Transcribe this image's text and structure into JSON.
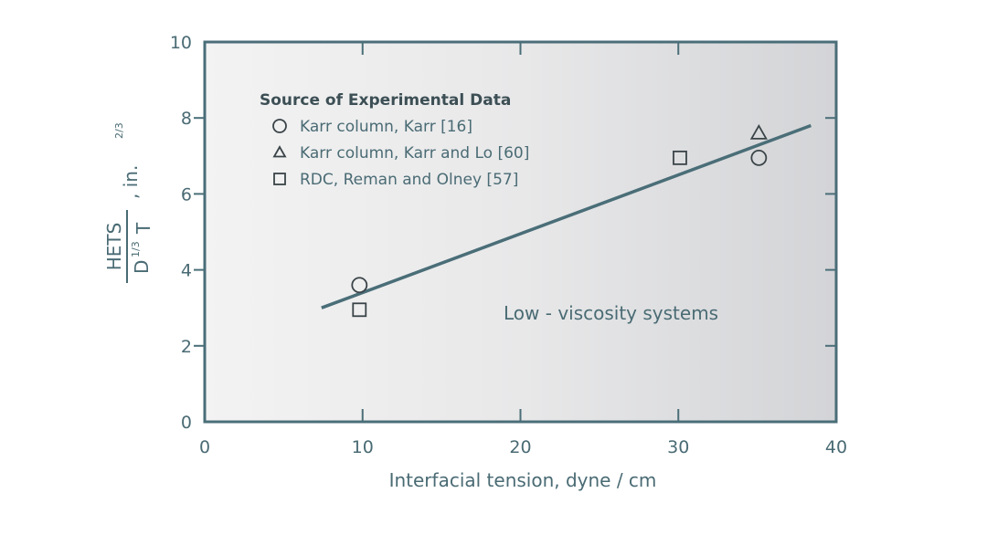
{
  "chart_data": {
    "type": "scatter",
    "title": "",
    "xlabel": "Interfacial tension, dyne / cm",
    "ylabel": {
      "numerator": "HETS",
      "denominator": "D",
      "denominator_sup": "1/3",
      "denominator_sub": "T",
      "units": ", in.",
      "units_sup": "2/3"
    },
    "xlim": [
      0,
      40
    ],
    "ylim": [
      0,
      10
    ],
    "xticks": [
      0,
      10,
      20,
      30,
      40
    ],
    "yticks": [
      0,
      2,
      4,
      6,
      8,
      10
    ],
    "grid": false,
    "legend_title": "Source of Experimental Data",
    "legend_position": "top-left",
    "series": [
      {
        "name": "Karr column, Karr  [16]",
        "marker": "circle",
        "points": [
          [
            9.8,
            3.6
          ],
          [
            35.1,
            6.95
          ]
        ]
      },
      {
        "name": "Karr column, Karr and Lo [60]",
        "marker": "triangle",
        "points": [
          [
            35.1,
            7.6
          ]
        ]
      },
      {
        "name": "RDC, Reman and Olney [57]",
        "marker": "square",
        "points": [
          [
            9.8,
            2.95
          ],
          [
            30.1,
            6.95
          ]
        ]
      }
    ],
    "fit_line": {
      "x": [
        7.4,
        38.4
      ],
      "y": [
        3.0,
        7.8
      ]
    },
    "annotation": "Low - viscosity systems",
    "colors": {
      "axis": "#4a6e78",
      "marker": "#3a4448"
    }
  }
}
